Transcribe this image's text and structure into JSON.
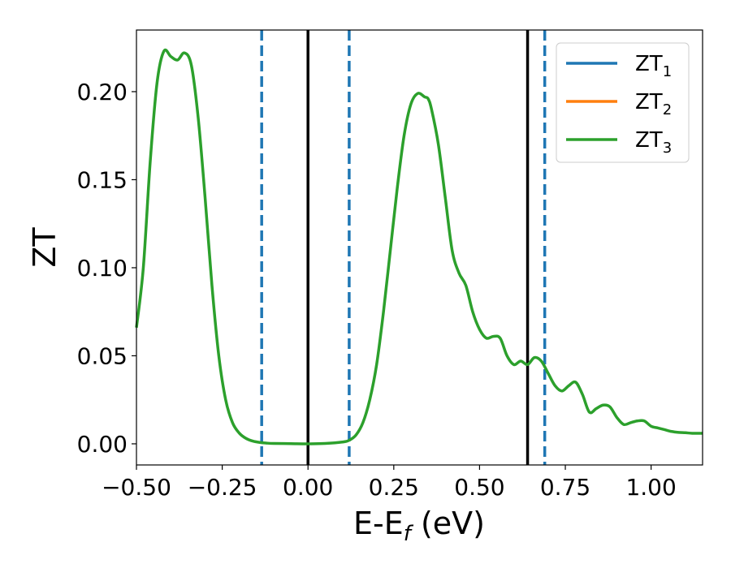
{
  "chart_data": {
    "type": "line",
    "xlabel": {
      "main": "E-E",
      "sub": "f",
      "suffix": " (eV)"
    },
    "ylabel": "ZT",
    "xlim": [
      -0.5,
      1.15
    ],
    "ylim": [
      -0.012,
      0.235
    ],
    "x_ticks": [
      -0.5,
      -0.25,
      0.0,
      0.25,
      0.5,
      0.75,
      1.0
    ],
    "x_tick_labels": [
      "−0.50",
      "−0.25",
      "0.00",
      "0.25",
      "0.50",
      "0.75",
      "1.00"
    ],
    "y_ticks": [
      0.0,
      0.05,
      0.1,
      0.15,
      0.2
    ],
    "y_tick_labels": [
      "0.00",
      "0.05",
      "0.10",
      "0.15",
      "0.20"
    ],
    "grid": false,
    "legend": {
      "placement": "top-right",
      "entries": [
        {
          "name": "ZT",
          "sub": "1",
          "color": "#1f77b4"
        },
        {
          "name": "ZT",
          "sub": "2",
          "color": "#ff7f0e"
        },
        {
          "name": "ZT",
          "sub": "3",
          "color": "#2ca02c"
        }
      ]
    },
    "vlines": [
      {
        "x": 0.0,
        "style": "solid",
        "color": "#000000"
      },
      {
        "x": 0.64,
        "style": "solid",
        "color": "#000000"
      },
      {
        "x": -0.135,
        "style": "dashed",
        "color": "#1f77b4"
      },
      {
        "x": 0.12,
        "style": "dashed",
        "color": "#1f77b4"
      },
      {
        "x": 0.69,
        "style": "dashed",
        "color": "#1f77b4"
      }
    ],
    "series": [
      {
        "color": "#2ca02c",
        "x": [
          -0.5,
          -0.48,
          -0.46,
          -0.44,
          -0.42,
          -0.4,
          -0.38,
          -0.36,
          -0.34,
          -0.32,
          -0.3,
          -0.28,
          -0.26,
          -0.24,
          -0.22,
          -0.2,
          -0.18,
          -0.16,
          -0.14,
          -0.12,
          -0.1,
          -0.05,
          0.0,
          0.05,
          0.1,
          0.12,
          0.14,
          0.16,
          0.18,
          0.2,
          0.22,
          0.24,
          0.26,
          0.28,
          0.3,
          0.32,
          0.34,
          0.35,
          0.36,
          0.38,
          0.4,
          0.42,
          0.44,
          0.46,
          0.48,
          0.5,
          0.52,
          0.54,
          0.56,
          0.58,
          0.6,
          0.62,
          0.64,
          0.66,
          0.68,
          0.7,
          0.72,
          0.74,
          0.76,
          0.78,
          0.8,
          0.82,
          0.84,
          0.86,
          0.88,
          0.9,
          0.92,
          0.94,
          0.96,
          0.98,
          1.0,
          1.02,
          1.04,
          1.06,
          1.08,
          1.1,
          1.12,
          1.15
        ],
        "y": [
          0.066,
          0.1,
          0.16,
          0.205,
          0.223,
          0.22,
          0.218,
          0.222,
          0.215,
          0.185,
          0.14,
          0.09,
          0.05,
          0.025,
          0.012,
          0.006,
          0.003,
          0.0015,
          0.0008,
          0.0004,
          0.0002,
          0.0001,
          0.0,
          0.0002,
          0.001,
          0.002,
          0.005,
          0.012,
          0.025,
          0.045,
          0.075,
          0.11,
          0.145,
          0.175,
          0.193,
          0.199,
          0.197,
          0.196,
          0.19,
          0.17,
          0.14,
          0.11,
          0.097,
          0.09,
          0.075,
          0.065,
          0.06,
          0.061,
          0.06,
          0.05,
          0.045,
          0.047,
          0.045,
          0.049,
          0.047,
          0.04,
          0.033,
          0.03,
          0.033,
          0.035,
          0.028,
          0.018,
          0.02,
          0.022,
          0.021,
          0.015,
          0.011,
          0.012,
          0.013,
          0.013,
          0.01,
          0.009,
          0.008,
          0.007,
          0.0065,
          0.0063,
          0.006,
          0.006
        ]
      }
    ]
  }
}
